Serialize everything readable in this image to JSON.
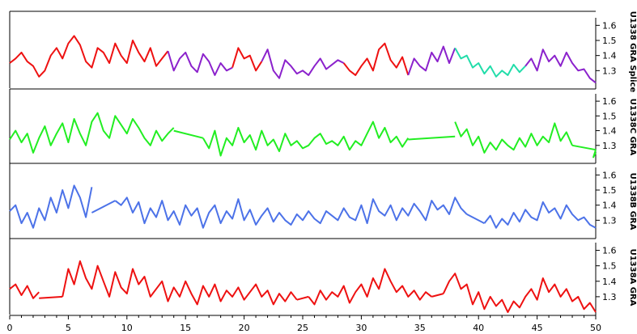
{
  "chart_data": {
    "type": "line",
    "title": "",
    "xlabel": "",
    "x_range": [
      0,
      50
    ],
    "x_ticks": [
      0,
      5,
      10,
      15,
      20,
      25,
      30,
      35,
      40,
      45,
      50
    ],
    "y_ticks": [
      1.3,
      1.4,
      1.5,
      1.6
    ],
    "y_range": [
      1.2,
      1.65
    ],
    "grid": false,
    "panels": [
      {
        "name": "U1338 GRA Splice",
        "color": "#8b22cc",
        "segments": [
          {
            "color": "#ee1111",
            "x": [
              0,
              0.5,
              1,
              1.5,
              2,
              2.5,
              3,
              3.5,
              4,
              4.5,
              5,
              5.5,
              6,
              6.5,
              7,
              7.5,
              8,
              8.5,
              9,
              9.5,
              10,
              10.5,
              11,
              11.5,
              12,
              12.5,
              13,
              13.5
            ],
            "y": [
              1.35,
              1.38,
              1.42,
              1.36,
              1.33,
              1.26,
              1.3,
              1.4,
              1.45,
              1.38,
              1.48,
              1.53,
              1.47,
              1.36,
              1.32,
              1.45,
              1.42,
              1.35,
              1.48,
              1.4,
              1.35,
              1.5,
              1.42,
              1.36,
              1.45,
              1.33,
              1.38,
              1.43
            ]
          },
          {
            "color": "#8b22cc",
            "x": [
              13.5,
              14,
              14.5,
              15,
              15.5,
              16,
              16.5,
              17,
              17.5,
              18,
              18.5,
              19
            ],
            "y": [
              1.43,
              1.3,
              1.38,
              1.42,
              1.33,
              1.29,
              1.41,
              1.36,
              1.27,
              1.35,
              1.3,
              1.32
            ]
          },
          {
            "color": "#ee1111",
            "x": [
              19,
              19.5,
              20,
              20.5,
              21,
              21.5
            ],
            "y": [
              1.32,
              1.45,
              1.38,
              1.4,
              1.3,
              1.36
            ]
          },
          {
            "color": "#8b22cc",
            "x": [
              21.5,
              22,
              22.5,
              23,
              23.5,
              24,
              24.5,
              25,
              25.5,
              26,
              26.5,
              27,
              27.5,
              28,
              28.5
            ],
            "y": [
              1.36,
              1.44,
              1.3,
              1.25,
              1.37,
              1.33,
              1.28,
              1.3,
              1.27,
              1.33,
              1.38,
              1.31,
              1.34,
              1.37,
              1.35
            ]
          },
          {
            "color": "#ee1111",
            "x": [
              28.5,
              29,
              29.5,
              30,
              30.5,
              31,
              31.5,
              32,
              32.5,
              33,
              33.5,
              34
            ],
            "y": [
              1.35,
              1.3,
              1.27,
              1.33,
              1.38,
              1.3,
              1.44,
              1.48,
              1.37,
              1.32,
              1.39,
              1.27
            ]
          },
          {
            "color": "#8b22cc",
            "x": [
              34,
              34.5,
              35,
              35.5,
              36,
              36.5,
              37,
              37.5,
              38
            ],
            "y": [
              1.27,
              1.38,
              1.33,
              1.3,
              1.42,
              1.36,
              1.46,
              1.35,
              1.45
            ]
          },
          {
            "color": "#22ddaa",
            "x": [
              38,
              38.5,
              39,
              39.5,
              40,
              40.5,
              41,
              41.5,
              42,
              42.5,
              43,
              43.5,
              44
            ],
            "y": [
              1.45,
              1.38,
              1.4,
              1.32,
              1.35,
              1.28,
              1.33,
              1.26,
              1.3,
              1.27,
              1.34,
              1.29,
              1.33
            ]
          },
          {
            "color": "#8b22cc",
            "x": [
              44,
              44.5,
              45,
              45.5,
              46,
              46.5,
              47,
              47.5,
              48,
              48.5,
              49,
              49.5,
              50
            ],
            "y": [
              1.33,
              1.38,
              1.3,
              1.44,
              1.36,
              1.4,
              1.33,
              1.42,
              1.35,
              1.3,
              1.31,
              1.25,
              1.22
            ]
          }
        ]
      },
      {
        "name": "U1338C GRA",
        "color": "#22ee22",
        "segments": [
          {
            "x": [
              0,
              0.5,
              1,
              1.5,
              2,
              2.5,
              3,
              3.5,
              4,
              4.5,
              5,
              5.5,
              6,
              6.5,
              7,
              7.5,
              8,
              8.5,
              9,
              9.5,
              10,
              10.5,
              11,
              11.5,
              12,
              12.5,
              13,
              13.5,
              14
            ],
            "y": [
              1.34,
              1.4,
              1.32,
              1.38,
              1.25,
              1.35,
              1.43,
              1.3,
              1.38,
              1.45,
              1.32,
              1.48,
              1.38,
              1.3,
              1.46,
              1.52,
              1.4,
              1.35,
              1.5,
              1.44,
              1.38,
              1.48,
              1.42,
              1.35,
              1.3,
              1.4,
              1.33,
              1.38,
              1.42
            ]
          },
          {
            "x": [
              14,
              16.5
            ],
            "y": [
              1.4,
              1.35
            ]
          },
          {
            "x": [
              16.5,
              17,
              17.5,
              18,
              18.5,
              19,
              19.5,
              20,
              20.5,
              21,
              21.5,
              22,
              22.5,
              23,
              23.5,
              24,
              24.5,
              25,
              25.5,
              26,
              26.5,
              27,
              27.5,
              28,
              28.5,
              29,
              29.5,
              30,
              30.5,
              31,
              31.5,
              32,
              32.5,
              33,
              33.5,
              34
            ],
            "y": [
              1.35,
              1.28,
              1.4,
              1.23,
              1.35,
              1.3,
              1.42,
              1.32,
              1.37,
              1.27,
              1.4,
              1.3,
              1.34,
              1.26,
              1.38,
              1.3,
              1.33,
              1.28,
              1.3,
              1.35,
              1.38,
              1.31,
              1.33,
              1.3,
              1.36,
              1.27,
              1.33,
              1.3,
              1.38,
              1.46,
              1.35,
              1.42,
              1.32,
              1.36,
              1.29,
              1.35
            ]
          },
          {
            "x": [
              34,
              38
            ],
            "y": [
              1.34,
              1.36
            ]
          },
          {
            "x": [
              38,
              38.5,
              39,
              39.5,
              40,
              40.5,
              41,
              41.5,
              42,
              42.5,
              43,
              43.5,
              44,
              44.5,
              45,
              45.5,
              46,
              46.5,
              47,
              47.5,
              48
            ],
            "y": [
              1.46,
              1.36,
              1.41,
              1.3,
              1.36,
              1.25,
              1.32,
              1.27,
              1.34,
              1.3,
              1.27,
              1.35,
              1.29,
              1.38,
              1.3,
              1.36,
              1.32,
              1.45,
              1.33,
              1.39,
              1.3
            ]
          },
          {
            "x": [
              48,
              50
            ],
            "y": [
              1.3,
              1.27
            ]
          },
          {
            "x": [
              50,
              49.8,
              50
            ],
            "y": [
              1.27,
              1.22,
              1.25
            ]
          }
        ]
      },
      {
        "name": "U1338B GRA",
        "color": "#4c72e8",
        "segments": [
          {
            "x": [
              0,
              0.5,
              1,
              1.5,
              2,
              2.5,
              3,
              3.5,
              4,
              4.5,
              5,
              5.5,
              6,
              6.5,
              7
            ],
            "y": [
              1.36,
              1.4,
              1.28,
              1.35,
              1.25,
              1.38,
              1.3,
              1.45,
              1.35,
              1.5,
              1.38,
              1.53,
              1.45,
              1.32,
              1.52
            ]
          },
          {
            "x": [
              7,
              9
            ],
            "y": [
              1.35,
              1.43
            ]
          },
          {
            "x": [
              9,
              9.5,
              10,
              10.5,
              11,
              11.5,
              12,
              12.5,
              13,
              13.5,
              14,
              14.5,
              15,
              15.5,
              16,
              16.5,
              17,
              17.5,
              18,
              18.5,
              19,
              19.5,
              20,
              20.5,
              21,
              21.5,
              22,
              22.5,
              23,
              23.5,
              24,
              24.5,
              25,
              25.5,
              26,
              26.5,
              27,
              27.5,
              28,
              28.5,
              29,
              29.5,
              30,
              30.5,
              31,
              31.5,
              32,
              32.5,
              33,
              33.5,
              34,
              34.5,
              35,
              35.5,
              36,
              36.5,
              37,
              37.5,
              38,
              38.5,
              39
            ],
            "y": [
              1.43,
              1.4,
              1.45,
              1.35,
              1.42,
              1.28,
              1.38,
              1.32,
              1.43,
              1.3,
              1.36,
              1.27,
              1.4,
              1.33,
              1.38,
              1.25,
              1.35,
              1.4,
              1.28,
              1.36,
              1.31,
              1.44,
              1.3,
              1.37,
              1.27,
              1.33,
              1.38,
              1.29,
              1.35,
              1.3,
              1.27,
              1.34,
              1.3,
              1.36,
              1.31,
              1.28,
              1.36,
              1.33,
              1.3,
              1.38,
              1.32,
              1.3,
              1.4,
              1.28,
              1.44,
              1.36,
              1.33,
              1.4,
              1.3,
              1.38,
              1.33,
              1.41,
              1.36,
              1.3,
              1.43,
              1.37,
              1.4,
              1.34,
              1.45,
              1.38,
              1.34
            ]
          },
          {
            "x": [
              39,
              40.5
            ],
            "y": [
              1.34,
              1.28
            ]
          },
          {
            "x": [
              40.5,
              41,
              41.5,
              42,
              42.5,
              43,
              43.5,
              44,
              44.5,
              45,
              45.5,
              46,
              46.5,
              47,
              47.5,
              48,
              48.5,
              49,
              49.5,
              50
            ],
            "y": [
              1.28,
              1.33,
              1.25,
              1.31,
              1.27,
              1.35,
              1.29,
              1.37,
              1.32,
              1.3,
              1.42,
              1.35,
              1.38,
              1.31,
              1.4,
              1.34,
              1.3,
              1.32,
              1.27,
              1.25
            ]
          }
        ]
      },
      {
        "name": "U1338A GRA",
        "color": "#ee1111",
        "segments": [
          {
            "x": [
              0,
              0.5,
              1,
              1.5,
              2,
              2.5
            ],
            "y": [
              1.35,
              1.38,
              1.31,
              1.37,
              1.29,
              1.33
            ]
          },
          {
            "x": [
              2.5,
              4.5
            ],
            "y": [
              1.29,
              1.3
            ]
          },
          {
            "x": [
              4.5,
              5,
              5.5,
              6,
              6.5,
              7,
              7.5,
              8,
              8.5,
              9,
              9.5,
              10,
              10.5,
              11,
              11.5,
              12,
              12.5,
              13,
              13.5,
              14,
              14.5,
              15,
              15.5,
              16,
              16.5,
              17,
              17.5,
              18,
              18.5,
              19,
              19.5,
              20,
              20.5,
              21,
              21.5,
              22,
              22.5,
              23,
              23.5,
              24,
              24.5
            ],
            "y": [
              1.3,
              1.48,
              1.38,
              1.53,
              1.42,
              1.35,
              1.5,
              1.4,
              1.3,
              1.46,
              1.36,
              1.32,
              1.48,
              1.38,
              1.43,
              1.3,
              1.35,
              1.4,
              1.27,
              1.36,
              1.3,
              1.4,
              1.32,
              1.25,
              1.37,
              1.3,
              1.38,
              1.27,
              1.34,
              1.3,
              1.36,
              1.28,
              1.33,
              1.38,
              1.3,
              1.34,
              1.25,
              1.32,
              1.27,
              1.33,
              1.28
            ]
          },
          {
            "x": [
              24.5,
              25.5
            ],
            "y": [
              1.28,
              1.3
            ]
          },
          {
            "x": [
              25.5,
              26,
              26.5,
              27,
              27.5,
              28,
              28.5,
              29,
              29.5,
              30,
              30.5,
              31,
              31.5,
              32,
              32.5,
              33,
              33.5,
              34,
              34.5,
              35,
              35.5,
              36
            ],
            "y": [
              1.3,
              1.25,
              1.34,
              1.28,
              1.33,
              1.3,
              1.37,
              1.26,
              1.33,
              1.38,
              1.3,
              1.42,
              1.35,
              1.48,
              1.4,
              1.33,
              1.37,
              1.3,
              1.34,
              1.28,
              1.33,
              1.3
            ]
          },
          {
            "x": [
              36,
              37
            ],
            "y": [
              1.3,
              1.32
            ]
          },
          {
            "x": [
              37,
              37.5,
              38,
              38.5,
              39,
              39.5,
              40,
              40.5,
              41,
              41.5,
              42,
              42.5,
              43,
              43.5,
              44,
              44.5,
              45,
              45.5,
              46,
              46.5,
              47,
              47.5,
              48,
              48.5,
              49,
              49.5,
              50
            ],
            "y": [
              1.32,
              1.4,
              1.45,
              1.35,
              1.38,
              1.25,
              1.33,
              1.22,
              1.3,
              1.24,
              1.28,
              1.2,
              1.27,
              1.23,
              1.3,
              1.35,
              1.28,
              1.42,
              1.33,
              1.38,
              1.3,
              1.35,
              1.27,
              1.3,
              1.22,
              1.26,
              1.2
            ]
          }
        ]
      }
    ]
  }
}
